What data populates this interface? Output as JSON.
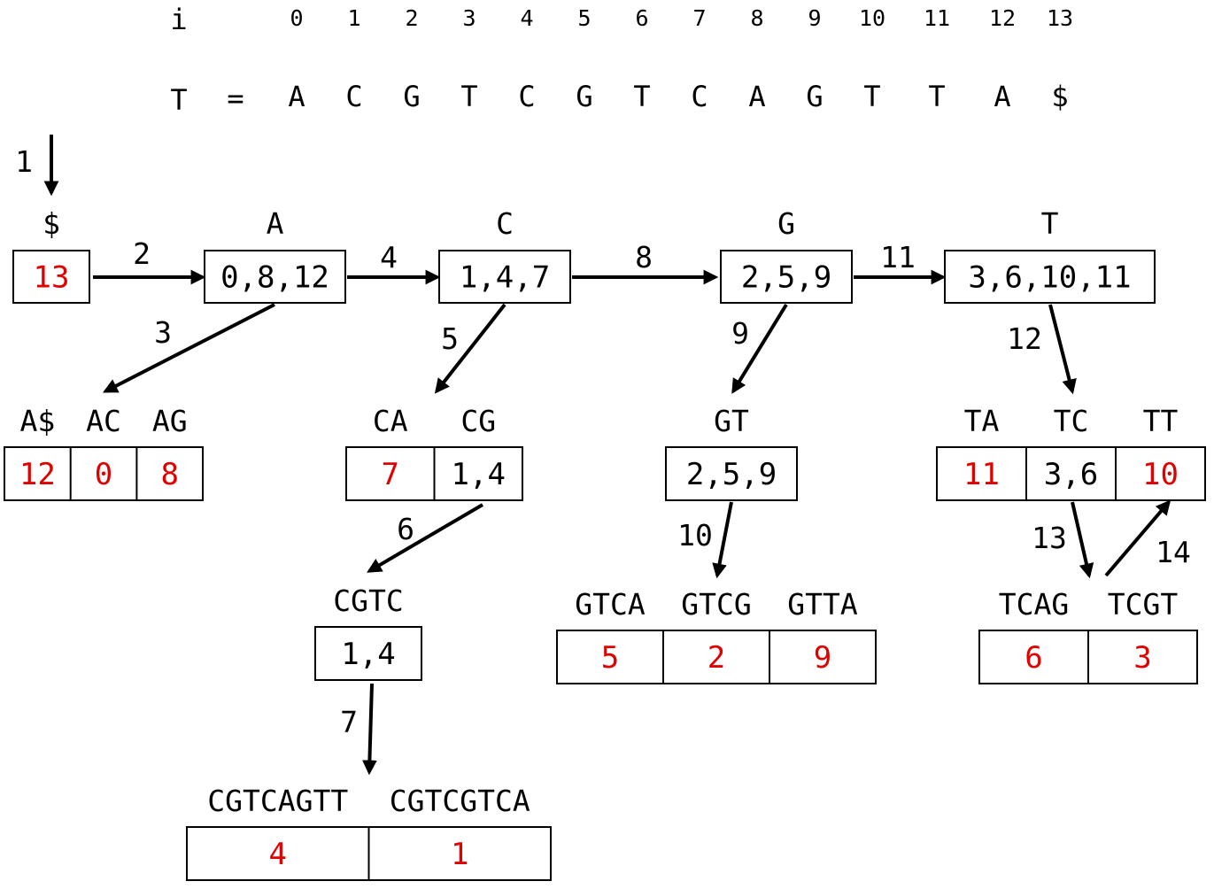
{
  "index_row": {
    "label": "i",
    "values": [
      "0",
      "1",
      "2",
      "3",
      "4",
      "5",
      "6",
      "7",
      "8",
      "9",
      "10",
      "11",
      "12",
      "13"
    ]
  },
  "text_row": {
    "label": "T",
    "equals": "=",
    "chars": [
      "A",
      "C",
      "G",
      "T",
      "C",
      "G",
      "T",
      "C",
      "A",
      "G",
      "T",
      "T",
      "A",
      "$"
    ]
  },
  "colors": {
    "final_value": "#e00000",
    "ink": "#000000"
  },
  "start_step": "1",
  "nodes": [
    {
      "id": "dollar",
      "labels": [
        "$"
      ],
      "values": [
        "13"
      ],
      "final": [
        true
      ]
    },
    {
      "id": "A",
      "labels": [
        "A"
      ],
      "values": [
        "0,8,12"
      ],
      "final": [
        false
      ]
    },
    {
      "id": "C",
      "labels": [
        "C"
      ],
      "values": [
        "1,4,7"
      ],
      "final": [
        false
      ]
    },
    {
      "id": "G",
      "labels": [
        "G"
      ],
      "values": [
        "2,5,9"
      ],
      "final": [
        false
      ]
    },
    {
      "id": "T",
      "labels": [
        "T"
      ],
      "values": [
        "3,6,10,11"
      ],
      "final": [
        false
      ]
    },
    {
      "id": "A2",
      "labels": [
        "A$",
        "AC",
        "AG"
      ],
      "values": [
        "12",
        "0",
        "8"
      ],
      "final": [
        true,
        true,
        true
      ]
    },
    {
      "id": "C2",
      "labels": [
        "CA",
        "CG"
      ],
      "values": [
        "7",
        "1,4"
      ],
      "final": [
        true,
        false
      ]
    },
    {
      "id": "CGTC",
      "labels": [
        "CGTC"
      ],
      "values": [
        "1,4"
      ],
      "final": [
        false
      ]
    },
    {
      "id": "C8",
      "labels": [
        "CGTCAGTT",
        "CGTCGTCA"
      ],
      "values": [
        "4",
        "1"
      ],
      "final": [
        true,
        true
      ]
    },
    {
      "id": "GT",
      "labels": [
        "GT"
      ],
      "values": [
        "2,5,9"
      ],
      "final": [
        false
      ]
    },
    {
      "id": "G4",
      "labels": [
        "GTCA",
        "GTCG",
        "GTTA"
      ],
      "values": [
        "5",
        "2",
        "9"
      ],
      "final": [
        true,
        true,
        true
      ]
    },
    {
      "id": "T2",
      "labels": [
        "TA",
        "TC",
        "TT"
      ],
      "values": [
        "11",
        "3,6",
        "10"
      ],
      "final": [
        true,
        false,
        true
      ]
    },
    {
      "id": "TC4",
      "labels": [
        "TCAG",
        "TCGT"
      ],
      "values": [
        "6",
        "3"
      ],
      "final": [
        true,
        true
      ]
    }
  ],
  "steps": [
    "2",
    "3",
    "4",
    "5",
    "6",
    "7",
    "8",
    "9",
    "10",
    "11",
    "12",
    "13",
    "14"
  ]
}
